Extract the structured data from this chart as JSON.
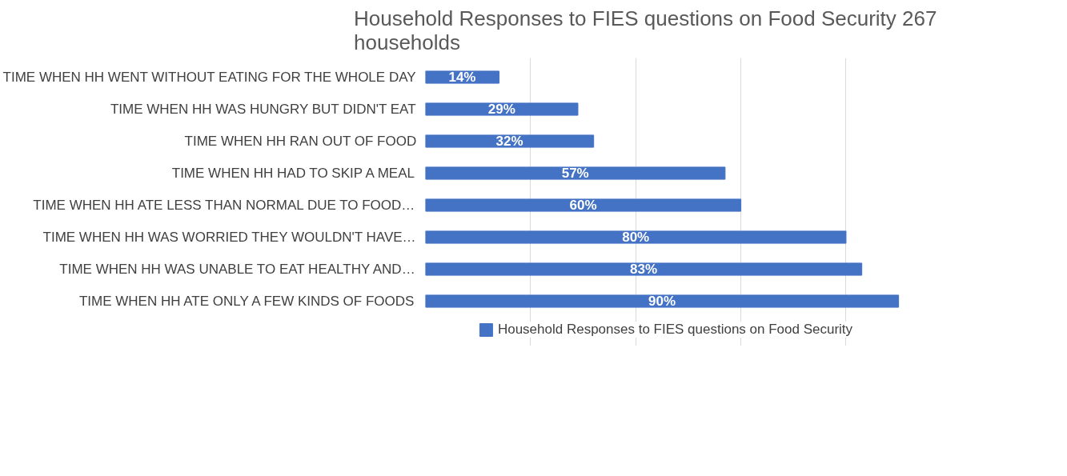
{
  "chart_data": {
    "type": "bar",
    "orientation": "horizontal",
    "title": "Household Responses to FIES questions on Food Security        267 households",
    "categories": [
      "TIME WHEN HH WENT WITHOUT EATING FOR THE WHOLE DAY",
      "TIME WHEN HH WAS HUNGRY BUT DIDN'T EAT",
      "TIME WHEN HH RAN OUT OF FOOD",
      "TIME WHEN HH HAD TO SKIP A MEAL",
      "TIME WHEN HH ATE LESS THAN NORMAL DUE TO FOOD…",
      "TIME WHEN HH WAS WORRIED THEY WOULDN'T HAVE…",
      "TIME WHEN HH WAS UNABLE TO EAT HEALTHY AND…",
      "TIME WHEN HH ATE ONLY A FEW KINDS OF FOODS"
    ],
    "series": [
      {
        "name": "Household Responses to FIES questions on Food Security",
        "color": "#4472c4",
        "values": [
          14,
          29,
          32,
          57,
          60,
          80,
          83,
          90
        ],
        "value_labels": [
          "14%",
          "29%",
          "32%",
          "57%",
          "60%",
          "80%",
          "83%",
          "90%"
        ]
      }
    ],
    "tick_labels": "y",
    "grid": "x",
    "legend": "bottom"
  }
}
